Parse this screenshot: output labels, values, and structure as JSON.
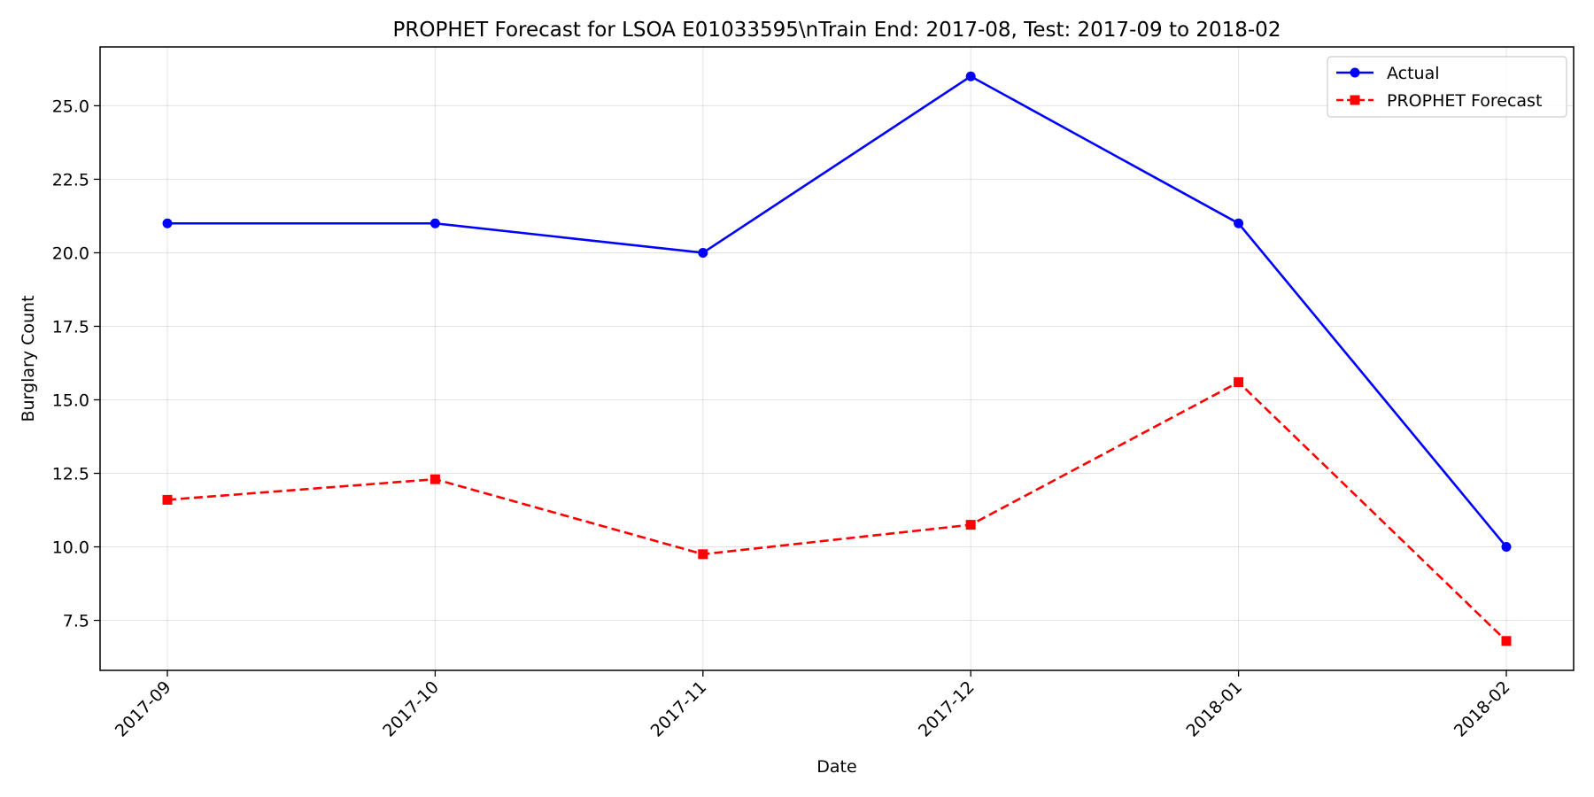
{
  "chart_data": {
    "type": "line",
    "title": "PROPHET Forecast for LSOA E01033595\\nTrain End: 2017-08, Test: 2017-09 to 2018-02",
    "xlabel": "Date",
    "ylabel": "Burglary Count",
    "categories": [
      "2017-09",
      "2017-10",
      "2017-11",
      "2017-12",
      "2018-01",
      "2018-02"
    ],
    "ylim": [
      5.8,
      27.0
    ],
    "yticks": [
      7.5,
      10.0,
      12.5,
      15.0,
      17.5,
      20.0,
      22.5,
      25.0
    ],
    "grid": true,
    "legend_position": "top-right",
    "series": [
      {
        "name": "Actual",
        "values": [
          21,
          21,
          20,
          26,
          21,
          10
        ],
        "color": "#0000ff",
        "line_style": "solid",
        "marker": "circle"
      },
      {
        "name": "PROPHET Forecast",
        "values": [
          11.6,
          12.3,
          9.75,
          10.75,
          15.6,
          6.8
        ],
        "color": "#ff0000",
        "line_style": "dashed",
        "marker": "square"
      }
    ]
  }
}
